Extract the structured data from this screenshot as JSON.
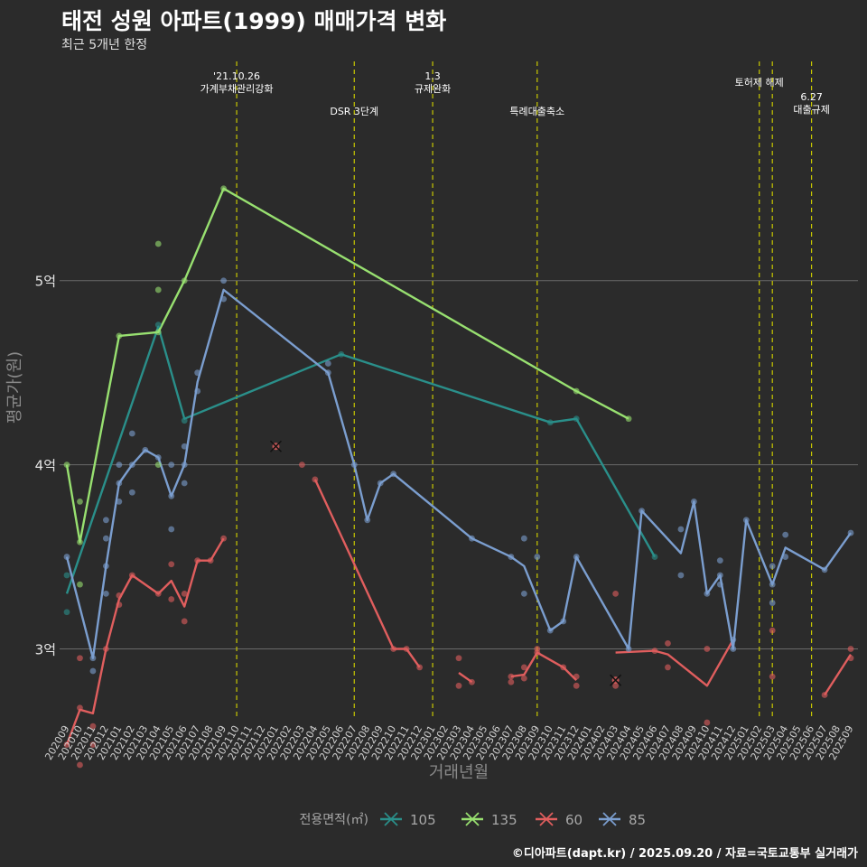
{
  "title": "태전 성원 아파트(1999) 매매가격 변화",
  "subtitle": "최근 5개년 한정",
  "caption": "©디아파트(dapt.kr) / 2025.09.20 / 자료=국토교통부 실거래가",
  "chart_data": {
    "type": "line",
    "xlabel": "거래년월",
    "ylabel": "평균가(원)",
    "ylim": [
      2.62,
      6.22
    ],
    "yticks": [
      {
        "value": 3,
        "label": "3억"
      },
      {
        "value": 4,
        "label": "4억"
      },
      {
        "value": 5,
        "label": "5억"
      }
    ],
    "x_categories": [
      "202009",
      "202010",
      "202011",
      "202012",
      "202101",
      "202102",
      "202103",
      "202104",
      "202105",
      "202106",
      "202107",
      "202108",
      "202109",
      "202110",
      "202111",
      "202112",
      "202201",
      "202202",
      "202203",
      "202204",
      "202205",
      "202206",
      "202207",
      "202208",
      "202209",
      "202210",
      "202211",
      "202212",
      "202301",
      "202302",
      "202303",
      "202304",
      "202305",
      "202306",
      "202307",
      "202308",
      "202309",
      "202310",
      "202311",
      "202312",
      "202401",
      "202402",
      "202403",
      "202404",
      "202405",
      "202406",
      "202407",
      "202408",
      "202409",
      "202410",
      "202411",
      "202412",
      "202501",
      "202502",
      "202503",
      "202504",
      "202505",
      "202506",
      "202507",
      "202508",
      "202509"
    ],
    "legend": {
      "title": "전용면적(㎡)",
      "position": "bottom"
    },
    "events": [
      {
        "x": "202110",
        "label": "'21.10.26\n가계부채관리강화",
        "row": 0
      },
      {
        "x": "202207",
        "label": "DSR 3단계",
        "row": 1
      },
      {
        "x": "202301",
        "label": "1.3\n규제완화",
        "row": 0
      },
      {
        "x": "202309",
        "label": "특례대출축소",
        "row": 1
      },
      {
        "x": "202502",
        "label": "토허제 해제",
        "row": 0
      },
      {
        "x": "202503",
        "label": "",
        "row": 0
      },
      {
        "x": "202506",
        "label": "6.27\n대출규제",
        "row": 2
      }
    ],
    "series": [
      {
        "name": "105",
        "color": "#2a8f8a",
        "line": [
          [
            "202009",
            3.3
          ],
          [
            "202104",
            4.75
          ],
          [
            "202106",
            4.25
          ],
          [
            "202206",
            4.6
          ],
          [
            "202310",
            4.23
          ],
          [
            "202312",
            4.25
          ],
          [
            "202406",
            3.5
          ]
        ],
        "points": [
          [
            "202009",
            3.4
          ],
          [
            "202009",
            3.2
          ],
          [
            "202104",
            4.76
          ],
          [
            "202106",
            4.24
          ],
          [
            "202206",
            4.6
          ],
          [
            "202310",
            4.23
          ],
          [
            "202312",
            4.25
          ],
          [
            "202406",
            3.5
          ]
        ]
      },
      {
        "name": "135",
        "color": "#98e070",
        "line": [
          [
            "202009",
            4.0
          ],
          [
            "202010",
            3.58
          ],
          [
            "202101",
            4.7
          ],
          [
            "202104",
            4.72
          ],
          [
            "202106",
            5.0
          ],
          [
            "202109",
            5.5
          ],
          [
            "202312",
            4.4
          ],
          [
            "202404",
            4.25
          ]
        ],
        "points": [
          [
            "202009",
            4.0
          ],
          [
            "202010",
            3.8
          ],
          [
            "202010",
            3.35
          ],
          [
            "202010",
            3.58
          ],
          [
            "202101",
            4.7
          ],
          [
            "202104",
            5.2
          ],
          [
            "202104",
            4.95
          ],
          [
            "202104",
            4.72
          ],
          [
            "202104",
            4.0
          ],
          [
            "202106",
            5.0
          ],
          [
            "202109",
            5.5
          ],
          [
            "202312",
            4.4
          ],
          [
            "202404",
            4.25
          ]
        ]
      },
      {
        "name": "60",
        "color": "#e05e5e",
        "line_segments": [
          [
            [
              "202009",
              2.48
            ],
            [
              "202010",
              2.67
            ],
            [
              "202011",
              2.65
            ],
            [
              "202012",
              3.0
            ],
            [
              "202101",
              3.27
            ],
            [
              "202102",
              3.4
            ],
            [
              "202104",
              3.3
            ],
            [
              "202105",
              3.37
            ],
            [
              "202106",
              3.23
            ],
            [
              "202107",
              3.48
            ],
            [
              "202108",
              3.48
            ],
            [
              "202109",
              3.6
            ]
          ],
          [
            [
              "202204",
              3.92
            ],
            [
              "202210",
              3.0
            ],
            [
              "202211",
              3.0
            ],
            [
              "202212",
              2.9
            ]
          ],
          [
            [
              "202303",
              2.87
            ],
            [
              "202304",
              2.82
            ]
          ],
          [
            [
              "202307",
              2.85
            ],
            [
              "202308",
              2.86
            ],
            [
              "202309",
              2.98
            ],
            [
              "202311",
              2.9
            ],
            [
              "202312",
              2.83
            ]
          ],
          [
            [
              "202403",
              2.98
            ],
            [
              "202406",
              2.99
            ],
            [
              "202407",
              2.97
            ],
            [
              "202410",
              2.8
            ],
            [
              "202412",
              3.05
            ]
          ],
          [
            [
              "202507",
              2.75
            ],
            [
              "202509",
              2.97
            ]
          ]
        ],
        "points": [
          [
            "202009",
            2.48
          ],
          [
            "202010",
            2.68
          ],
          [
            "202010",
            2.37
          ],
          [
            "202010",
            2.95
          ],
          [
            "202011",
            2.58
          ],
          [
            "202011",
            2.48
          ],
          [
            "202012",
            3.0
          ],
          [
            "202101",
            3.29
          ],
          [
            "202101",
            3.24
          ],
          [
            "202102",
            3.4
          ],
          [
            "202104",
            3.3
          ],
          [
            "202105",
            3.46
          ],
          [
            "202105",
            3.27
          ],
          [
            "202106",
            3.3
          ],
          [
            "202106",
            3.15
          ],
          [
            "202107",
            3.48
          ],
          [
            "202108",
            3.48
          ],
          [
            "202109",
            3.6
          ],
          [
            "202203",
            4.0
          ],
          [
            "202204",
            3.92
          ],
          [
            "202210",
            3.0
          ],
          [
            "202211",
            3.0
          ],
          [
            "202212",
            2.9
          ],
          [
            "202303",
            2.95
          ],
          [
            "202303",
            2.8
          ],
          [
            "202304",
            2.82
          ],
          [
            "202307",
            2.85
          ],
          [
            "202307",
            2.82
          ],
          [
            "202308",
            2.9
          ],
          [
            "202308",
            2.84
          ],
          [
            "202309",
            2.98
          ],
          [
            "202309",
            3.0
          ],
          [
            "202311",
            2.9
          ],
          [
            "202312",
            2.85
          ],
          [
            "202312",
            2.8
          ],
          [
            "202403",
            3.3
          ],
          [
            "202403",
            2.8
          ],
          [
            "202406",
            2.99
          ],
          [
            "202407",
            2.9
          ],
          [
            "202407",
            3.03
          ],
          [
            "202410",
            3.0
          ],
          [
            "202410",
            2.6
          ],
          [
            "202503",
            3.1
          ],
          [
            "202503",
            2.85
          ],
          [
            "202507",
            2.75
          ],
          [
            "202509",
            3.0
          ],
          [
            "202509",
            2.95
          ]
        ],
        "cancelled": [
          [
            "202201",
            4.1
          ],
          [
            "202403",
            2.83
          ]
        ]
      },
      {
        "name": "85",
        "color": "#7b9ecf",
        "line": [
          [
            "202009",
            3.5
          ],
          [
            "202011",
            2.95
          ],
          [
            "202012",
            3.45
          ],
          [
            "202101",
            3.9
          ],
          [
            "202102",
            4.0
          ],
          [
            "202103",
            4.08
          ],
          [
            "202104",
            4.04
          ],
          [
            "202105",
            3.83
          ],
          [
            "202106",
            4.0
          ],
          [
            "202107",
            4.45
          ],
          [
            "202109",
            4.95
          ],
          [
            "202205",
            4.5
          ],
          [
            "202207",
            4.0
          ],
          [
            "202208",
            3.7
          ],
          [
            "202209",
            3.9
          ],
          [
            "202210",
            3.95
          ],
          [
            "202304",
            3.6
          ],
          [
            "202307",
            3.5
          ],
          [
            "202308",
            3.45
          ],
          [
            "202310",
            3.1
          ],
          [
            "202311",
            3.15
          ],
          [
            "202312",
            3.5
          ],
          [
            "202404",
            3.0
          ],
          [
            "202405",
            3.75
          ],
          [
            "202408",
            3.52
          ],
          [
            "202409",
            3.8
          ],
          [
            "202410",
            3.3
          ],
          [
            "202411",
            3.4
          ],
          [
            "202412",
            3.0
          ],
          [
            "202501",
            3.7
          ],
          [
            "202503",
            3.35
          ],
          [
            "202504",
            3.55
          ],
          [
            "202507",
            3.43
          ],
          [
            "202509",
            3.63
          ]
        ],
        "points": [
          [
            "202009",
            3.5
          ],
          [
            "202011",
            2.95
          ],
          [
            "202011",
            2.88
          ],
          [
            "202012",
            3.7
          ],
          [
            "202012",
            3.6
          ],
          [
            "202012",
            3.3
          ],
          [
            "202012",
            3.45
          ],
          [
            "202101",
            4.0
          ],
          [
            "202101",
            3.8
          ],
          [
            "202101",
            3.9
          ],
          [
            "202102",
            4.17
          ],
          [
            "202102",
            4.0
          ],
          [
            "202102",
            3.85
          ],
          [
            "202103",
            4.08
          ],
          [
            "202104",
            4.04
          ],
          [
            "202105",
            4.0
          ],
          [
            "202105",
            3.65
          ],
          [
            "202105",
            3.83
          ],
          [
            "202106",
            4.1
          ],
          [
            "202106",
            3.9
          ],
          [
            "202106",
            4.0
          ],
          [
            "202107",
            4.5
          ],
          [
            "202107",
            4.4
          ],
          [
            "202109",
            5.0
          ],
          [
            "202109",
            4.9
          ],
          [
            "202205",
            4.55
          ],
          [
            "202205",
            4.5
          ],
          [
            "202207",
            4.0
          ],
          [
            "202208",
            3.7
          ],
          [
            "202209",
            3.9
          ],
          [
            "202210",
            3.95
          ],
          [
            "202304",
            3.6
          ],
          [
            "202307",
            3.5
          ],
          [
            "202308",
            3.6
          ],
          [
            "202308",
            3.3
          ],
          [
            "202309",
            3.5
          ],
          [
            "202310",
            3.1
          ],
          [
            "202311",
            3.15
          ],
          [
            "202312",
            3.5
          ],
          [
            "202404",
            3.0
          ],
          [
            "202405",
            3.75
          ],
          [
            "202408",
            3.65
          ],
          [
            "202408",
            3.4
          ],
          [
            "202409",
            3.8
          ],
          [
            "202410",
            3.3
          ],
          [
            "202411",
            3.48
          ],
          [
            "202411",
            3.35
          ],
          [
            "202411",
            3.4
          ],
          [
            "202412",
            3.05
          ],
          [
            "202412",
            3.0
          ],
          [
            "202501",
            3.7
          ],
          [
            "202503",
            3.45
          ],
          [
            "202503",
            3.25
          ],
          [
            "202503",
            3.35
          ],
          [
            "202504",
            3.62
          ],
          [
            "202504",
            3.5
          ],
          [
            "202507",
            3.43
          ],
          [
            "202509",
            3.63
          ]
        ]
      }
    ]
  }
}
